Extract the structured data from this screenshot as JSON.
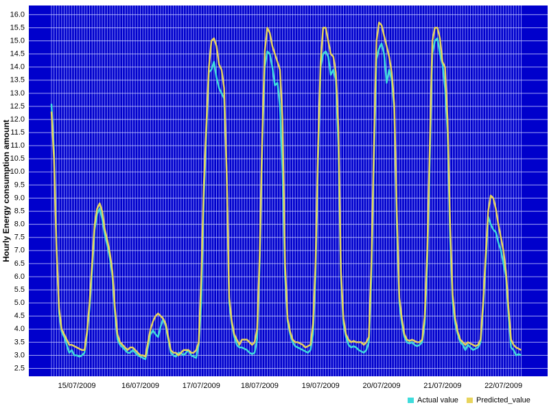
{
  "chart_data": {
    "type": "line",
    "y_label": "Hourly Energy consumption amount",
    "categories": [
      null,
      null,
      null,
      null,
      null,
      null,
      null,
      null,
      null,
      null,
      "15/07/2009",
      null,
      null,
      null,
      null,
      null,
      null,
      null,
      null,
      null,
      null,
      null,
      null,
      null,
      null,
      null,
      null,
      null,
      null,
      null,
      null,
      null,
      null,
      null,
      null,
      "16/07/2009",
      null,
      null,
      null,
      null,
      null,
      null,
      null,
      null,
      null,
      null,
      null,
      null,
      null,
      null,
      null,
      null,
      null,
      null,
      null,
      null,
      null,
      null,
      null,
      "17/07/2009",
      null,
      null,
      null,
      null,
      null,
      null,
      null,
      null,
      null,
      null,
      null,
      null,
      null,
      null,
      null,
      null,
      null,
      null,
      null,
      null,
      null,
      null,
      "18/07/2009",
      null,
      null,
      null,
      null,
      null,
      null,
      null,
      null,
      null,
      null,
      null,
      null,
      null,
      null,
      null,
      null,
      null,
      null,
      null,
      null,
      null,
      null,
      null,
      "19/07/2009",
      null,
      null,
      null,
      null,
      null,
      null,
      null,
      null,
      null,
      null,
      null,
      null,
      null,
      null,
      null,
      null,
      null,
      null,
      null,
      null,
      null,
      null,
      null,
      "20/07/2009",
      null,
      null,
      null,
      null,
      null,
      null,
      null,
      null,
      null,
      null,
      null,
      null,
      null,
      null,
      null,
      null,
      null,
      null,
      null,
      null,
      null,
      null,
      null,
      "21/07/2009",
      null,
      null,
      null,
      null,
      null,
      null,
      null,
      null,
      null,
      null,
      null,
      null,
      null,
      null,
      null,
      null,
      null,
      null,
      null,
      null,
      null,
      null,
      null,
      "22/07/2009",
      null,
      null,
      null,
      null,
      null,
      null,
      null
    ],
    "series": [
      {
        "name": "Actual value",
        "color": "#3fdcdc",
        "values": [
          12.6,
          10.8,
          7.2,
          4.6,
          3.9,
          3.7,
          3.4,
          3.1,
          3.2,
          3.0,
          3.0,
          2.95,
          3.0,
          3.1,
          3.8,
          4.8,
          6.2,
          7.8,
          8.4,
          8.6,
          8.2,
          7.6,
          7.2,
          6.7,
          6.0,
          4.6,
          3.6,
          3.4,
          3.3,
          3.2,
          3.1,
          3.1,
          3.2,
          3.1,
          3.0,
          2.95,
          2.9,
          2.85,
          3.3,
          3.8,
          3.95,
          3.8,
          3.7,
          4.1,
          4.4,
          4.1,
          3.6,
          3.1,
          3.0,
          2.95,
          3.1,
          3.1,
          3.0,
          3.1,
          3.2,
          3.0,
          2.95,
          2.9,
          3.4,
          5.0,
          9.0,
          11.5,
          13.8,
          13.9,
          14.2,
          13.6,
          13.2,
          13.0,
          12.8,
          10.0,
          5.0,
          4.2,
          3.7,
          3.4,
          3.3,
          3.3,
          3.25,
          3.2,
          3.1,
          3.05,
          3.1,
          3.6,
          6.5,
          11.0,
          14.0,
          14.6,
          14.5,
          14.0,
          13.3,
          13.4,
          12.5,
          10.0,
          6.0,
          4.3,
          3.8,
          3.5,
          3.35,
          3.3,
          3.25,
          3.2,
          3.15,
          3.1,
          3.2,
          3.8,
          6.0,
          10.5,
          14.0,
          14.5,
          14.6,
          14.4,
          13.7,
          13.9,
          13.5,
          11.0,
          6.0,
          4.2,
          3.7,
          3.4,
          3.3,
          3.35,
          3.3,
          3.2,
          3.15,
          3.1,
          3.2,
          3.5,
          6.0,
          10.5,
          14.3,
          14.7,
          14.9,
          14.5,
          13.4,
          13.9,
          13.5,
          12.4,
          8.0,
          5.0,
          4.2,
          3.7,
          3.5,
          3.45,
          3.5,
          3.4,
          3.35,
          3.4,
          3.5,
          4.2,
          6.5,
          10.5,
          14.5,
          15.0,
          15.1,
          14.5,
          14.1,
          13.2,
          11.5,
          7.5,
          5.0,
          4.2,
          3.8,
          3.5,
          3.4,
          3.2,
          3.4,
          3.3,
          3.2,
          3.25,
          3.3,
          3.5,
          4.8,
          6.5,
          8.3,
          8.0,
          7.8,
          7.7,
          7.3,
          7.0,
          6.5,
          6.0,
          4.5,
          3.3,
          3.2,
          3.0,
          3.05,
          3.0
        ]
      },
      {
        "name": "Predicted_value",
        "color": "#e8d45c",
        "values": [
          12.3,
          10.5,
          7.0,
          4.8,
          4.0,
          3.8,
          3.6,
          3.4,
          3.4,
          3.35,
          3.3,
          3.25,
          3.2,
          3.2,
          3.9,
          5.0,
          6.5,
          8.0,
          8.6,
          8.8,
          8.5,
          7.8,
          7.4,
          6.9,
          6.2,
          4.8,
          3.8,
          3.5,
          3.4,
          3.3,
          3.2,
          3.3,
          3.3,
          3.2,
          3.1,
          3.0,
          3.0,
          2.95,
          3.5,
          4.0,
          4.3,
          4.5,
          4.6,
          4.5,
          4.4,
          4.2,
          3.7,
          3.2,
          3.1,
          3.1,
          3.0,
          3.1,
          3.2,
          3.2,
          3.2,
          3.1,
          3.1,
          3.2,
          3.5,
          6.0,
          9.5,
          11.8,
          14.0,
          15.0,
          15.1,
          14.8,
          14.1,
          13.9,
          13.2,
          10.0,
          5.2,
          4.3,
          3.8,
          3.6,
          3.4,
          3.6,
          3.6,
          3.6,
          3.5,
          3.4,
          3.5,
          4.0,
          6.8,
          11.3,
          14.6,
          15.5,
          15.3,
          14.8,
          14.5,
          14.2,
          13.9,
          12.0,
          6.5,
          4.4,
          3.9,
          3.6,
          3.5,
          3.5,
          3.45,
          3.4,
          3.3,
          3.35,
          3.4,
          4.2,
          6.5,
          11.0,
          14.2,
          15.5,
          15.5,
          15.0,
          14.5,
          14.4,
          13.8,
          11.7,
          6.2,
          4.4,
          3.8,
          3.6,
          3.5,
          3.55,
          3.5,
          3.5,
          3.5,
          3.4,
          3.5,
          3.7,
          6.5,
          11.0,
          15.0,
          15.7,
          15.6,
          15.2,
          14.8,
          14.4,
          13.8,
          12.6,
          8.5,
          5.2,
          4.4,
          3.8,
          3.6,
          3.55,
          3.6,
          3.55,
          3.5,
          3.5,
          3.6,
          4.5,
          7.0,
          11.0,
          15.0,
          15.5,
          15.5,
          15.1,
          14.2,
          14.0,
          12.0,
          8.0,
          5.3,
          4.4,
          3.9,
          3.6,
          3.5,
          3.4,
          3.5,
          3.45,
          3.4,
          3.35,
          3.4,
          3.6,
          5.0,
          6.8,
          8.5,
          9.1,
          9.0,
          8.6,
          8.0,
          7.5,
          7.0,
          6.2,
          4.8,
          3.6,
          3.4,
          3.3,
          3.25,
          3.2
        ]
      }
    ],
    "ylim": [
      2.2,
      16.35
    ],
    "yticks": [
      2.5,
      {
        "value": 3.0,
        "label": "3.0"
      },
      3.5,
      {
        "value": 4.0,
        "label": "4.0"
      },
      4.5,
      {
        "value": 5.0,
        "label": "5.0"
      },
      5.5,
      {
        "value": 6.0,
        "label": "6.0"
      },
      6.5,
      {
        "value": 7.0,
        "label": "7.0"
      },
      7.5,
      {
        "value": 8.0,
        "label": "8.0"
      },
      8.5,
      {
        "value": 9.0,
        "label": "9.0"
      },
      9.5,
      {
        "value": 10.0,
        "label": "10.0"
      },
      10.5,
      {
        "value": 11.0,
        "label": "11.0"
      },
      11.5,
      {
        "value": 12.0,
        "label": "12.0"
      },
      12.5,
      {
        "value": 13.0,
        "label": "13.0"
      },
      13.5,
      {
        "value": 14.0,
        "label": "14.0"
      },
      14.5,
      {
        "value": 15.0,
        "label": "15.0"
      },
      15.5,
      {
        "value": 16.0,
        "label": "16.0"
      }
    ],
    "grid": true,
    "legend": "bottom-right"
  }
}
